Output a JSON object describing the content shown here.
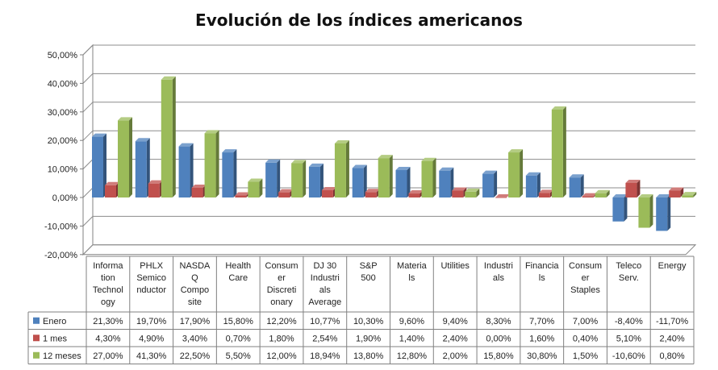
{
  "chart_data": {
    "type": "bar",
    "title": "Evolución de los índices americanos",
    "categories": [
      [
        "Informa",
        "tion",
        "Technol",
        "ogy"
      ],
      [
        "PHLX",
        "Semico",
        "nductor"
      ],
      [
        "NASDA",
        "Q",
        "Compo",
        "site"
      ],
      [
        "Health",
        "Care"
      ],
      [
        "Consum",
        "er",
        "Discreti",
        "onary"
      ],
      [
        "DJ 30",
        "Industri",
        "als",
        "Average"
      ],
      [
        "S&P",
        "500"
      ],
      [
        "Materia",
        "ls"
      ],
      [
        "Utilities"
      ],
      [
        "Industri",
        "als"
      ],
      [
        "Financia",
        "ls"
      ],
      [
        "Consum",
        "er",
        "Staples"
      ],
      [
        "Teleco",
        "Serv."
      ],
      [
        "Energy"
      ]
    ],
    "series": [
      {
        "name": "Enero",
        "color": "#4F81BD",
        "values": [
          21.3,
          19.7,
          17.9,
          15.8,
          12.2,
          10.77,
          10.3,
          9.6,
          9.4,
          8.3,
          7.7,
          7.0,
          -8.4,
          -11.7
        ],
        "labels": [
          "21,30%",
          "19,70%",
          "17,90%",
          "15,80%",
          "12,20%",
          "10,77%",
          "10,30%",
          "9,60%",
          "9,40%",
          "8,30%",
          "7,70%",
          "7,00%",
          "-8,40%",
          "-11,70%"
        ]
      },
      {
        "name": "1 mes",
        "color": "#C0504D",
        "values": [
          4.3,
          4.9,
          3.4,
          0.7,
          1.8,
          2.54,
          1.9,
          1.4,
          2.4,
          0.0,
          1.6,
          0.4,
          5.1,
          2.4
        ],
        "labels": [
          "4,30%",
          "4,90%",
          "3,40%",
          "0,70%",
          "1,80%",
          "2,54%",
          "1,90%",
          "1,40%",
          "2,40%",
          "0,00%",
          "1,60%",
          "0,40%",
          "5,10%",
          "2,40%"
        ]
      },
      {
        "name": "12 meses",
        "color": "#9BBB59",
        "values": [
          27.0,
          41.3,
          22.5,
          5.5,
          12.0,
          18.94,
          13.8,
          12.8,
          2.0,
          15.8,
          30.8,
          1.5,
          -10.6,
          0.8
        ],
        "labels": [
          "27,00%",
          "41,30%",
          "22,50%",
          "5,50%",
          "12,00%",
          "18,94%",
          "13,80%",
          "12,80%",
          "2,00%",
          "15,80%",
          "30,80%",
          "1,50%",
          "-10,60%",
          "0,80%"
        ]
      }
    ],
    "ylim": [
      -20,
      50
    ],
    "yticks": [
      50,
      40,
      30,
      20,
      10,
      0,
      -10,
      -20
    ],
    "ytick_labels": [
      "50,00%",
      "40,00%",
      "30,00%",
      "20,00%",
      "10,00%",
      "0,00%",
      "-10,00%",
      "-20,00%"
    ],
    "grid": true,
    "legend": "data-table",
    "style": "3d-clustered-column"
  }
}
